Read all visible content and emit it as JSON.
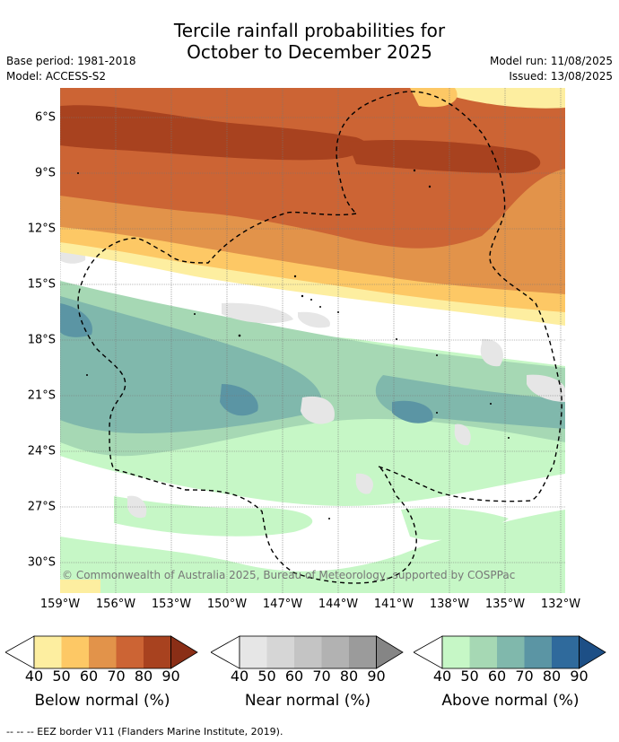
{
  "title": {
    "line1": "Tercile rainfall probabilities for",
    "line2": "October to December 2025"
  },
  "meta_left": {
    "base_period": "Base period: 1981-2018",
    "model": "Model: ACCESS-S2"
  },
  "meta_right": {
    "model_run": "Model run: 11/08/2025",
    "issued": "Issued: 13/08/2025"
  },
  "map": {
    "lat_labels": [
      "6°S",
      "9°S",
      "12°S",
      "15°S",
      "18°S",
      "21°S",
      "24°S",
      "27°S",
      "30°S"
    ],
    "lon_labels": [
      "159°W",
      "156°W",
      "153°W",
      "150°W",
      "147°W",
      "144°W",
      "141°W",
      "138°W",
      "135°W",
      "132°W"
    ],
    "copyright": "© Commonwealth of Australia 2025, Bureau of Meteorology, supported by COSPPac",
    "gridlines": true
  },
  "legends": {
    "below": {
      "title": "Below normal (%)",
      "ticks": [
        "40",
        "50",
        "60",
        "70",
        "80",
        "90"
      ],
      "colors": [
        "#fdeea0",
        "#fdc865",
        "#e2934a",
        "#cc6434",
        "#a8421f",
        "#8a2e16"
      ]
    },
    "near": {
      "title": "Near normal (%)",
      "ticks": [
        "40",
        "50",
        "60",
        "70",
        "80",
        "90"
      ],
      "colors": [
        "#e6e6e6",
        "#d6d6d6",
        "#c4c4c4",
        "#b2b2b2",
        "#9b9b9b",
        "#858585"
      ]
    },
    "above": {
      "title": "Above normal (%)",
      "ticks": [
        "40",
        "50",
        "60",
        "70",
        "80",
        "90"
      ],
      "colors": [
        "#c6f7c6",
        "#a6d8b4",
        "#80b8ac",
        "#5b95a4",
        "#2f6a9c",
        "#1d4f86"
      ]
    }
  },
  "footer": "--  --  -- EEZ border V11 (Flanders Marine Institute, 2019)."
}
